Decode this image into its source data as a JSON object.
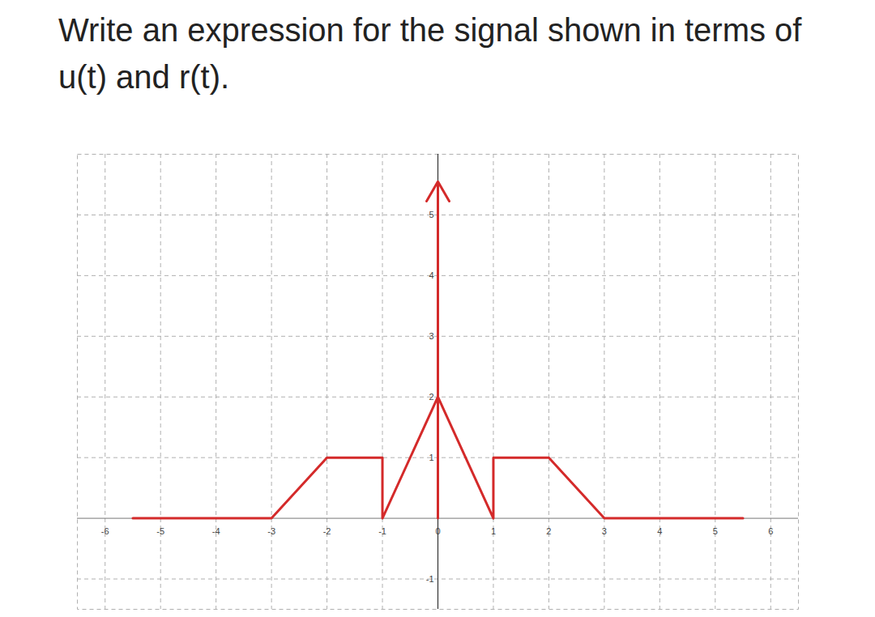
{
  "chart_data": {
    "type": "line",
    "title": "Write an expression for the signal shown in terms of u(t) and r(t).",
    "series": [
      {
        "color": "#d42a2a",
        "x": [
          -5.5,
          -3,
          -2,
          -1,
          -1,
          0,
          1,
          1,
          2,
          3,
          5.5
        ],
        "values": [
          0,
          0,
          1,
          1,
          0,
          2,
          0,
          1,
          1,
          0,
          0
        ]
      },
      {
        "type": "impulse",
        "color": "#d42a2a",
        "x": [
          0
        ],
        "values": [
          5.55
        ]
      }
    ],
    "xlim": [
      -6.5,
      6.5
    ],
    "ylim": [
      -1.5,
      6
    ],
    "xticks": [
      -6,
      -5,
      -4,
      -3,
      -2,
      -1,
      0,
      1,
      2,
      3,
      4,
      5,
      6
    ],
    "yticks": [
      -1,
      1,
      2,
      3,
      4,
      5
    ],
    "grid": true
  }
}
